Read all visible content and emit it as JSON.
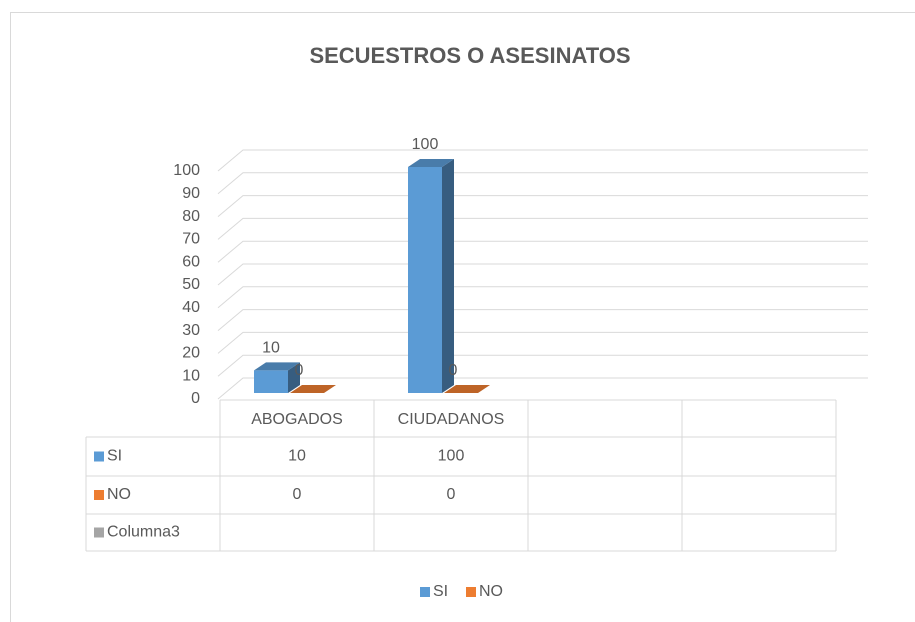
{
  "chart_data": {
    "type": "bar3d",
    "title": "SECUESTROS O ASESINATOS",
    "categories": [
      "ABOGADOS",
      "CIUDADANOS",
      null,
      null
    ],
    "series": [
      {
        "name": "SI",
        "color": "#5b9bd5",
        "values": [
          10,
          100,
          null,
          null
        ],
        "legend": true
      },
      {
        "name": "NO",
        "color": "#ed7d31",
        "values": [
          0,
          0,
          null,
          null
        ],
        "legend": true
      },
      {
        "name": "Columna3",
        "color": "#a5a5a5",
        "values": [
          null,
          null,
          null,
          null
        ],
        "legend": false
      }
    ],
    "ylim": [
      0,
      100
    ],
    "yticks": [
      0,
      10,
      20,
      30,
      40,
      50,
      60,
      70,
      80,
      90,
      100
    ],
    "grid": true,
    "data_table": true,
    "legend_position": "bottom"
  }
}
